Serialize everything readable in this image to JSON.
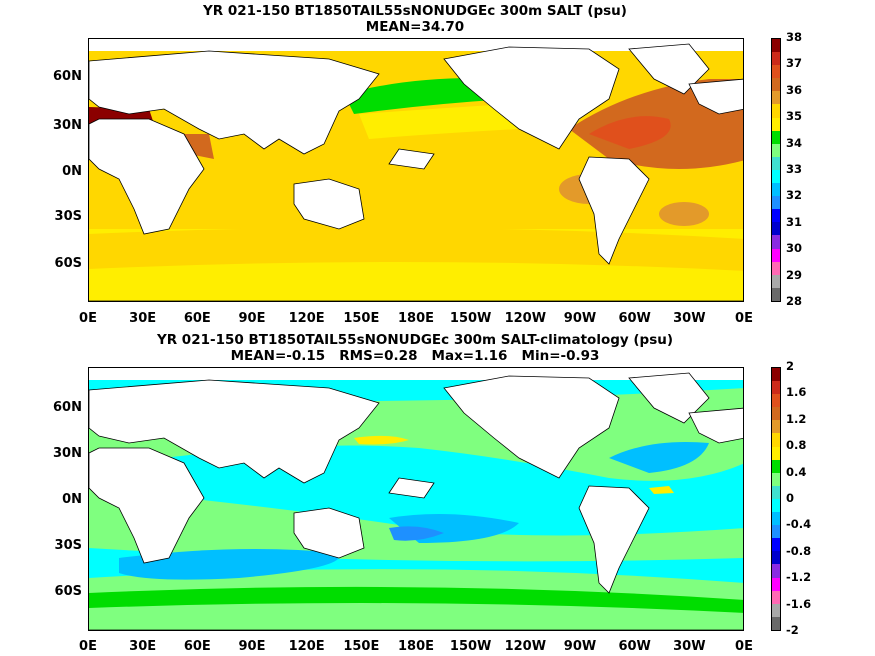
{
  "panel1": {
    "title_line1": "YR 021-150 BT1850TAIL55sNONUDGEc 300m SALT (psu)",
    "title_line2": "MEAN=34.70",
    "colorbar_labels": [
      "38",
      "37",
      "36",
      "35",
      "34",
      "33",
      "32",
      "31",
      "30",
      "29",
      "28"
    ],
    "colorbar_colors": [
      "#8b0000",
      "#cc2a1a",
      "#e0501c",
      "#d2691e",
      "#e39a2a",
      "#ffd700",
      "#ffee00",
      "#00dd00",
      "#7fff7f",
      "#40e0d0",
      "#00ffff",
      "#00bfff",
      "#1e90ff",
      "#0000ff",
      "#0000cd",
      "#8a2be2",
      "#ff00ff",
      "#ff69b4",
      "#a9a9a9",
      "#696969"
    ]
  },
  "panel2": {
    "title_line1": "YR 021-150 BT1850TAIL55sNONUDGEc 300m SALT-climatology (psu)",
    "title_line2": "MEAN=-0.15   RMS=0.28   Max=1.16   Min=-0.93",
    "colorbar_labels": [
      "2",
      "1.6",
      "1.2",
      "0.8",
      "0.4",
      "0",
      "-0.4",
      "-0.8",
      "-1.2",
      "-1.6",
      "-2"
    ],
    "colorbar_colors": [
      "#8b0000",
      "#cc2a1a",
      "#e0501c",
      "#d2691e",
      "#e39a2a",
      "#ffd700",
      "#ffee00",
      "#00dd00",
      "#7fff7f",
      "#40e0d0",
      "#00ffff",
      "#00bfff",
      "#1e90ff",
      "#0000ff",
      "#0000cd",
      "#8a2be2",
      "#ff00ff",
      "#ff69b4",
      "#a9a9a9",
      "#696969"
    ]
  },
  "axes": {
    "lat_labels": [
      "60N",
      "30N",
      "0N",
      "30S",
      "60S"
    ],
    "lon_labels": [
      "0E",
      "30E",
      "60E",
      "90E",
      "120E",
      "150E",
      "180E",
      "150W",
      "120W",
      "90W",
      "60W",
      "30W",
      "0E"
    ]
  }
}
